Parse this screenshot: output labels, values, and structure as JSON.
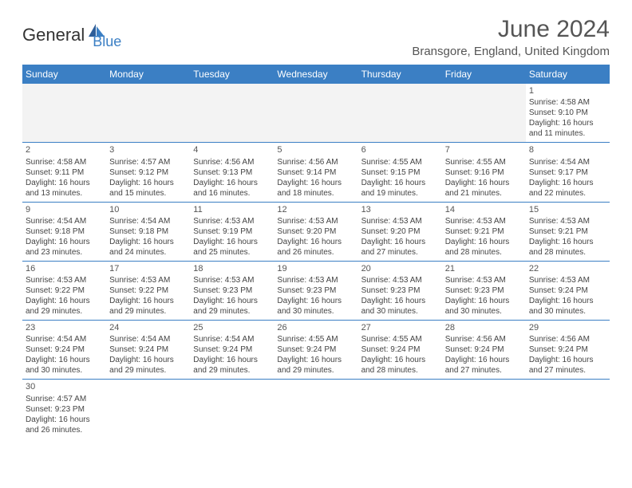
{
  "logo": {
    "part1": "General",
    "part2": "Blue"
  },
  "title": "June 2024",
  "location": "Bransgore, England, United Kingdom",
  "weekdays": [
    "Sunday",
    "Monday",
    "Tuesday",
    "Wednesday",
    "Thursday",
    "Friday",
    "Saturday"
  ],
  "colors": {
    "header_bg": "#3b7fc4",
    "header_text": "#ffffff",
    "border": "#3b7fc4",
    "logo_accent": "#3b7fc4",
    "empty_bg": "#f3f3f3",
    "text": "#444444"
  },
  "weeks": [
    [
      null,
      null,
      null,
      null,
      null,
      null,
      {
        "d": "1",
        "sr": "Sunrise: 4:58 AM",
        "ss": "Sunset: 9:10 PM",
        "dl1": "Daylight: 16 hours",
        "dl2": "and 11 minutes."
      }
    ],
    [
      {
        "d": "2",
        "sr": "Sunrise: 4:58 AM",
        "ss": "Sunset: 9:11 PM",
        "dl1": "Daylight: 16 hours",
        "dl2": "and 13 minutes."
      },
      {
        "d": "3",
        "sr": "Sunrise: 4:57 AM",
        "ss": "Sunset: 9:12 PM",
        "dl1": "Daylight: 16 hours",
        "dl2": "and 15 minutes."
      },
      {
        "d": "4",
        "sr": "Sunrise: 4:56 AM",
        "ss": "Sunset: 9:13 PM",
        "dl1": "Daylight: 16 hours",
        "dl2": "and 16 minutes."
      },
      {
        "d": "5",
        "sr": "Sunrise: 4:56 AM",
        "ss": "Sunset: 9:14 PM",
        "dl1": "Daylight: 16 hours",
        "dl2": "and 18 minutes."
      },
      {
        "d": "6",
        "sr": "Sunrise: 4:55 AM",
        "ss": "Sunset: 9:15 PM",
        "dl1": "Daylight: 16 hours",
        "dl2": "and 19 minutes."
      },
      {
        "d": "7",
        "sr": "Sunrise: 4:55 AM",
        "ss": "Sunset: 9:16 PM",
        "dl1": "Daylight: 16 hours",
        "dl2": "and 21 minutes."
      },
      {
        "d": "8",
        "sr": "Sunrise: 4:54 AM",
        "ss": "Sunset: 9:17 PM",
        "dl1": "Daylight: 16 hours",
        "dl2": "and 22 minutes."
      }
    ],
    [
      {
        "d": "9",
        "sr": "Sunrise: 4:54 AM",
        "ss": "Sunset: 9:18 PM",
        "dl1": "Daylight: 16 hours",
        "dl2": "and 23 minutes."
      },
      {
        "d": "10",
        "sr": "Sunrise: 4:54 AM",
        "ss": "Sunset: 9:18 PM",
        "dl1": "Daylight: 16 hours",
        "dl2": "and 24 minutes."
      },
      {
        "d": "11",
        "sr": "Sunrise: 4:53 AM",
        "ss": "Sunset: 9:19 PM",
        "dl1": "Daylight: 16 hours",
        "dl2": "and 25 minutes."
      },
      {
        "d": "12",
        "sr": "Sunrise: 4:53 AM",
        "ss": "Sunset: 9:20 PM",
        "dl1": "Daylight: 16 hours",
        "dl2": "and 26 minutes."
      },
      {
        "d": "13",
        "sr": "Sunrise: 4:53 AM",
        "ss": "Sunset: 9:20 PM",
        "dl1": "Daylight: 16 hours",
        "dl2": "and 27 minutes."
      },
      {
        "d": "14",
        "sr": "Sunrise: 4:53 AM",
        "ss": "Sunset: 9:21 PM",
        "dl1": "Daylight: 16 hours",
        "dl2": "and 28 minutes."
      },
      {
        "d": "15",
        "sr": "Sunrise: 4:53 AM",
        "ss": "Sunset: 9:21 PM",
        "dl1": "Daylight: 16 hours",
        "dl2": "and 28 minutes."
      }
    ],
    [
      {
        "d": "16",
        "sr": "Sunrise: 4:53 AM",
        "ss": "Sunset: 9:22 PM",
        "dl1": "Daylight: 16 hours",
        "dl2": "and 29 minutes."
      },
      {
        "d": "17",
        "sr": "Sunrise: 4:53 AM",
        "ss": "Sunset: 9:22 PM",
        "dl1": "Daylight: 16 hours",
        "dl2": "and 29 minutes."
      },
      {
        "d": "18",
        "sr": "Sunrise: 4:53 AM",
        "ss": "Sunset: 9:23 PM",
        "dl1": "Daylight: 16 hours",
        "dl2": "and 29 minutes."
      },
      {
        "d": "19",
        "sr": "Sunrise: 4:53 AM",
        "ss": "Sunset: 9:23 PM",
        "dl1": "Daylight: 16 hours",
        "dl2": "and 30 minutes."
      },
      {
        "d": "20",
        "sr": "Sunrise: 4:53 AM",
        "ss": "Sunset: 9:23 PM",
        "dl1": "Daylight: 16 hours",
        "dl2": "and 30 minutes."
      },
      {
        "d": "21",
        "sr": "Sunrise: 4:53 AM",
        "ss": "Sunset: 9:23 PM",
        "dl1": "Daylight: 16 hours",
        "dl2": "and 30 minutes."
      },
      {
        "d": "22",
        "sr": "Sunrise: 4:53 AM",
        "ss": "Sunset: 9:24 PM",
        "dl1": "Daylight: 16 hours",
        "dl2": "and 30 minutes."
      }
    ],
    [
      {
        "d": "23",
        "sr": "Sunrise: 4:54 AM",
        "ss": "Sunset: 9:24 PM",
        "dl1": "Daylight: 16 hours",
        "dl2": "and 30 minutes."
      },
      {
        "d": "24",
        "sr": "Sunrise: 4:54 AM",
        "ss": "Sunset: 9:24 PM",
        "dl1": "Daylight: 16 hours",
        "dl2": "and 29 minutes."
      },
      {
        "d": "25",
        "sr": "Sunrise: 4:54 AM",
        "ss": "Sunset: 9:24 PM",
        "dl1": "Daylight: 16 hours",
        "dl2": "and 29 minutes."
      },
      {
        "d": "26",
        "sr": "Sunrise: 4:55 AM",
        "ss": "Sunset: 9:24 PM",
        "dl1": "Daylight: 16 hours",
        "dl2": "and 29 minutes."
      },
      {
        "d": "27",
        "sr": "Sunrise: 4:55 AM",
        "ss": "Sunset: 9:24 PM",
        "dl1": "Daylight: 16 hours",
        "dl2": "and 28 minutes."
      },
      {
        "d": "28",
        "sr": "Sunrise: 4:56 AM",
        "ss": "Sunset: 9:24 PM",
        "dl1": "Daylight: 16 hours",
        "dl2": "and 27 minutes."
      },
      {
        "d": "29",
        "sr": "Sunrise: 4:56 AM",
        "ss": "Sunset: 9:24 PM",
        "dl1": "Daylight: 16 hours",
        "dl2": "and 27 minutes."
      }
    ],
    [
      {
        "d": "30",
        "sr": "Sunrise: 4:57 AM",
        "ss": "Sunset: 9:23 PM",
        "dl1": "Daylight: 16 hours",
        "dl2": "and 26 minutes."
      },
      null,
      null,
      null,
      null,
      null,
      null
    ]
  ]
}
